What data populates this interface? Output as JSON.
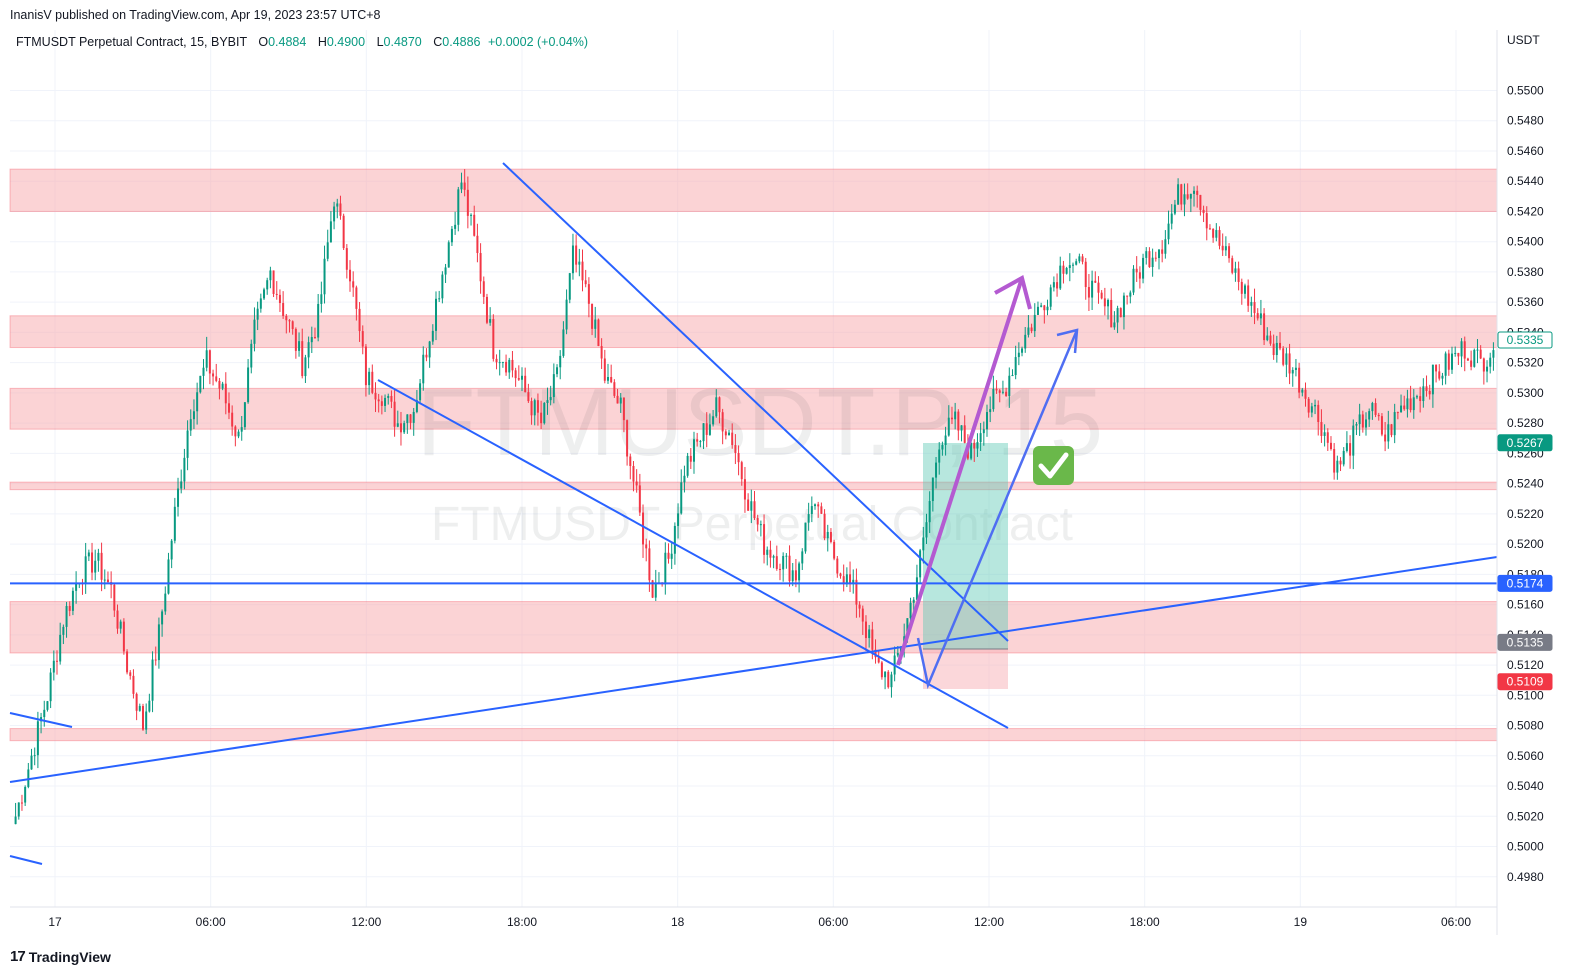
{
  "header": {
    "publisher": "InanisV published on TradingView.com, Apr 19, 2023 23:57 UTC+8"
  },
  "symbol": {
    "name": "FTMUSDT Perpetual Contract, 15, BYBIT",
    "o_label": "O",
    "o": "0.4884",
    "h_label": "H",
    "h": "0.4900",
    "l_label": "L",
    "l": "0.4870",
    "c_label": "C",
    "c": "0.4886",
    "change": "+0.0002 (+0.04%)"
  },
  "watermark": {
    "big": "FTMUSDT.P, 15",
    "small": "FTMUSDT Perpetual Contract"
  },
  "footer": {
    "brand": "TradingView",
    "logo": "17"
  },
  "colors": {
    "up": "#089981",
    "down": "#f23645",
    "zone": "#f7a8ab",
    "trend": "#2962ff",
    "arrow_purple": "#b45ad1",
    "arrow_blue": "#4f6ef2",
    "tp": "#5fc9b5",
    "sl": "#f7b6bb"
  },
  "chart_data": {
    "type": "candlestick",
    "currency": "USDT",
    "ylim": [
      0.496,
      0.554
    ],
    "y_ticks": [
      "0.4980",
      "0.5000",
      "0.5020",
      "0.5040",
      "0.5060",
      "0.5080",
      "0.5100",
      "0.5120",
      "0.5140",
      "0.5160",
      "0.5180",
      "0.5200",
      "0.5220",
      "0.5240",
      "0.5260",
      "0.5280",
      "0.5300",
      "0.5320",
      "0.5340",
      "0.5360",
      "0.5380",
      "0.5400",
      "0.5420",
      "0.5440",
      "0.5460",
      "0.5480",
      "0.5500"
    ],
    "x_ticks": [
      "17",
      "06:00",
      "12:00",
      "18:00",
      "18",
      "06:00",
      "12:00",
      "18:00",
      "19",
      "06:00"
    ],
    "price_badges": [
      {
        "label": "0.5335",
        "kind": "current",
        "color": "#089981"
      },
      {
        "label": "0.5267",
        "kind": "tp",
        "color": "#089981"
      },
      {
        "label": "0.5174",
        "kind": "line",
        "color": "#2962ff"
      },
      {
        "label": "0.5135",
        "kind": "entry",
        "color": "#787b86"
      },
      {
        "label": "0.5109",
        "kind": "sl",
        "color": "#f23645"
      }
    ],
    "zones": [
      {
        "from": 0.542,
        "to": 0.5448
      },
      {
        "from": 0.533,
        "to": 0.5351
      },
      {
        "from": 0.5276,
        "to": 0.5303
      },
      {
        "from": 0.5236,
        "to": 0.5241
      },
      {
        "from": 0.5128,
        "to": 0.5162
      },
      {
        "from": 0.507,
        "to": 0.5078
      }
    ],
    "horizontal_line": 0.5174,
    "checkmark": "✅",
    "path": [
      0.502,
      0.506,
      0.51,
      0.515,
      0.518,
      0.519,
      0.517,
      0.512,
      0.508,
      0.514,
      0.522,
      0.529,
      0.532,
      0.53,
      0.527,
      0.534,
      0.538,
      0.535,
      0.532,
      0.535,
      0.543,
      0.538,
      0.531,
      0.53,
      0.528,
      0.529,
      0.534,
      0.539,
      0.544,
      0.539,
      0.533,
      0.532,
      0.53,
      0.528,
      0.531,
      0.539,
      0.536,
      0.531,
      0.529,
      0.523,
      0.517,
      0.519,
      0.525,
      0.527,
      0.529,
      0.527,
      0.523,
      0.52,
      0.519,
      0.518,
      0.523,
      0.52,
      0.518,
      0.516,
      0.512,
      0.511,
      0.515,
      0.52,
      0.527,
      0.528,
      0.526,
      0.529,
      0.53,
      0.533,
      0.535,
      0.537,
      0.539,
      0.538,
      0.536,
      0.535,
      0.537,
      0.539,
      0.54,
      0.543,
      0.544,
      0.541,
      0.539,
      0.537,
      0.535,
      0.533,
      0.532,
      0.53,
      0.528,
      0.525,
      0.527,
      0.529,
      0.527,
      0.529,
      0.53,
      0.531,
      0.532,
      0.533,
      0.532,
      0.5335
    ]
  }
}
